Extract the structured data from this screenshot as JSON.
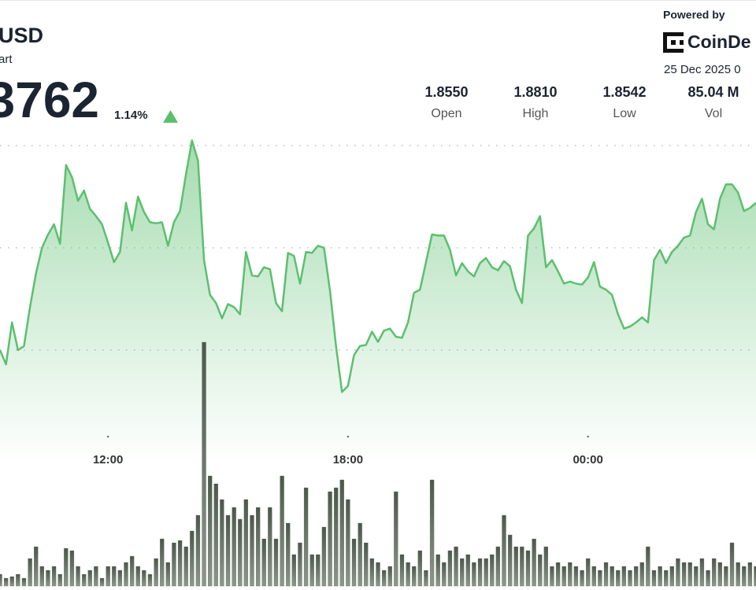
{
  "header": {
    "title": "USD",
    "subtitle": "art",
    "price": "3762",
    "change": "1.14%"
  },
  "stats": [
    {
      "value": "1.8550",
      "label": "Open"
    },
    {
      "value": "1.8810",
      "label": "High"
    },
    {
      "value": "1.8542",
      "label": "Low"
    },
    {
      "value": "85.04 M",
      "label": "Vol"
    }
  ],
  "brand": {
    "powered": "Powered by",
    "name": "CoinDe",
    "date": "25 Dec 2025 0"
  },
  "chart_data": {
    "type": "line",
    "x": [
      9.3,
      9.45,
      9.6,
      9.75,
      9.9,
      10.05,
      10.2,
      10.35,
      10.5,
      10.65,
      10.8,
      10.95,
      11.1,
      11.25,
      11.4,
      11.55,
      11.7,
      11.85,
      12,
      12.15,
      12.3,
      12.45,
      12.6,
      12.75,
      12.9,
      13.05,
      13.2,
      13.35,
      13.5,
      13.65,
      13.8,
      13.95,
      14.1,
      14.25,
      14.4,
      14.55,
      14.7,
      14.85,
      15,
      15.15,
      15.3,
      15.45,
      15.6,
      15.75,
      15.9,
      16.05,
      16.2,
      16.35,
      16.5,
      16.65,
      16.8,
      16.95,
      17.1,
      17.25,
      17.4,
      17.55,
      17.7,
      17.85,
      18,
      18.15,
      18.3,
      18.45,
      18.6,
      18.75,
      18.9,
      19.05,
      19.2,
      19.35,
      19.5,
      19.65,
      19.8,
      19.95,
      20.1,
      20.25,
      20.4,
      20.55,
      20.7,
      20.85,
      21,
      21.15,
      21.3,
      21.45,
      21.6,
      21.75,
      21.9,
      22.05,
      22.2,
      22.35,
      22.5,
      22.65,
      22.8,
      22.95,
      23.1,
      23.25,
      23.4,
      23.55,
      23.7,
      23.85,
      24,
      24.15,
      24.3,
      24.45,
      24.6,
      24.75,
      24.9,
      25.05,
      25.2,
      25.35,
      25.5,
      25.65,
      25.8,
      25.95,
      26.1,
      26.25,
      26.4,
      26.55,
      26.7,
      26.85,
      27,
      27.15,
      27.3,
      27.45,
      27.6,
      27.75,
      27.9,
      28.05,
      28.2
    ],
    "xlim": [
      9.3,
      28.2
    ],
    "xticks": [
      {
        "value": 12,
        "label": "12:00"
      },
      {
        "value": 18,
        "label": "18:00"
      },
      {
        "value": 24,
        "label": "00:00"
      }
    ],
    "ylim": [
      1.849,
      1.882
    ],
    "yticks": [
      1.86,
      1.87,
      1.88
    ],
    "grid": true,
    "y2lim": [
      0,
      7
    ],
    "series": [
      {
        "color": "#5cbf6f",
        "values": [
          1.86,
          1.8586,
          1.8627,
          1.86,
          1.8604,
          1.8642,
          1.8675,
          1.87,
          1.8713,
          1.8723,
          1.8704,
          1.8781,
          1.8769,
          1.8746,
          1.8756,
          1.8738,
          1.8731,
          1.8723,
          1.8705,
          1.8686,
          1.8696,
          1.8744,
          1.8717,
          1.875,
          1.8735,
          1.8725,
          1.8724,
          1.8725,
          1.8702,
          1.8725,
          1.8736,
          1.8772,
          1.8805,
          1.8785,
          1.8688,
          1.8654,
          1.8646,
          1.8631,
          1.8645,
          1.8642,
          1.8635,
          1.8696,
          1.8673,
          1.8672,
          1.8681,
          1.8679,
          1.8646,
          1.8638,
          1.8695,
          1.8692,
          1.8665,
          1.8696,
          1.8695,
          1.8702,
          1.87,
          1.8658,
          1.8604,
          1.8559,
          1.8565,
          1.8595,
          1.8604,
          1.8605,
          1.8618,
          1.8608,
          1.8619,
          1.8621,
          1.8613,
          1.8612,
          1.8627,
          1.8656,
          1.8659,
          1.8686,
          1.8713,
          1.8712,
          1.8712,
          1.8698,
          1.8673,
          1.8685,
          1.8677,
          1.8672,
          1.8685,
          1.869,
          1.8681,
          1.8678,
          1.8687,
          1.8682,
          1.8659,
          1.8646,
          1.8712,
          1.8719,
          1.8731,
          1.8681,
          1.8688,
          1.8677,
          1.8665,
          1.8667,
          1.8665,
          1.8664,
          1.8671,
          1.8686,
          1.8662,
          1.8659,
          1.8654,
          1.8635,
          1.8621,
          1.8623,
          1.8627,
          1.8632,
          1.8627,
          1.8688,
          1.8698,
          1.8685,
          1.8696,
          1.8702,
          1.871,
          1.8712,
          1.8735,
          1.8748,
          1.8723,
          1.8718,
          1.8748,
          1.8762,
          1.8762,
          1.8754,
          1.8736,
          1.8739,
          1.8744
        ]
      },
      {
        "type": "bar",
        "axis": "y2",
        "color": "#5d6a5c",
        "values": [
          0.3,
          0.2,
          0.24,
          0.3,
          0.2,
          0.7,
          1,
          0.5,
          0.4,
          0.5,
          0.3,
          0.96,
          0.9,
          0.5,
          0.3,
          0.4,
          0.5,
          0.2,
          0.5,
          0.5,
          0.4,
          0.6,
          0.76,
          0.5,
          0.4,
          0.3,
          0.7,
          1.2,
          0.6,
          1.1,
          1.16,
          1,
          1.4,
          1.8,
          6.2,
          2.8,
          2.6,
          2.2,
          1.8,
          2,
          1.7,
          2.2,
          1.8,
          2,
          1.2,
          2,
          1.2,
          2.8,
          1.6,
          0.8,
          1.1,
          2.5,
          0.8,
          0.8,
          1.5,
          2.4,
          2.5,
          2.7,
          2.2,
          1.2,
          1.6,
          1.1,
          0.7,
          0.6,
          0.4,
          0.5,
          2.4,
          0.8,
          0.6,
          0.5,
          0.9,
          0.4,
          2.7,
          0.8,
          0.6,
          0.9,
          1,
          0.7,
          0.8,
          0.6,
          0.7,
          0.7,
          0.8,
          1,
          1.8,
          1.3,
          1,
          1,
          0.9,
          1.2,
          0.8,
          1,
          0.5,
          0.6,
          0.5,
          0.6,
          0.5,
          0.4,
          0.7,
          0.5,
          0.4,
          0.6,
          0.5,
          0.4,
          0.5,
          0.4,
          0.5,
          0.6,
          1,
          0.4,
          0.5,
          0.4,
          0.5,
          0.7,
          0.6,
          0.6,
          0.5,
          0.7,
          0.4,
          0.7,
          0.6,
          0.5,
          1.1,
          0.6,
          0.5,
          0.6,
          0.5
        ]
      }
    ]
  }
}
